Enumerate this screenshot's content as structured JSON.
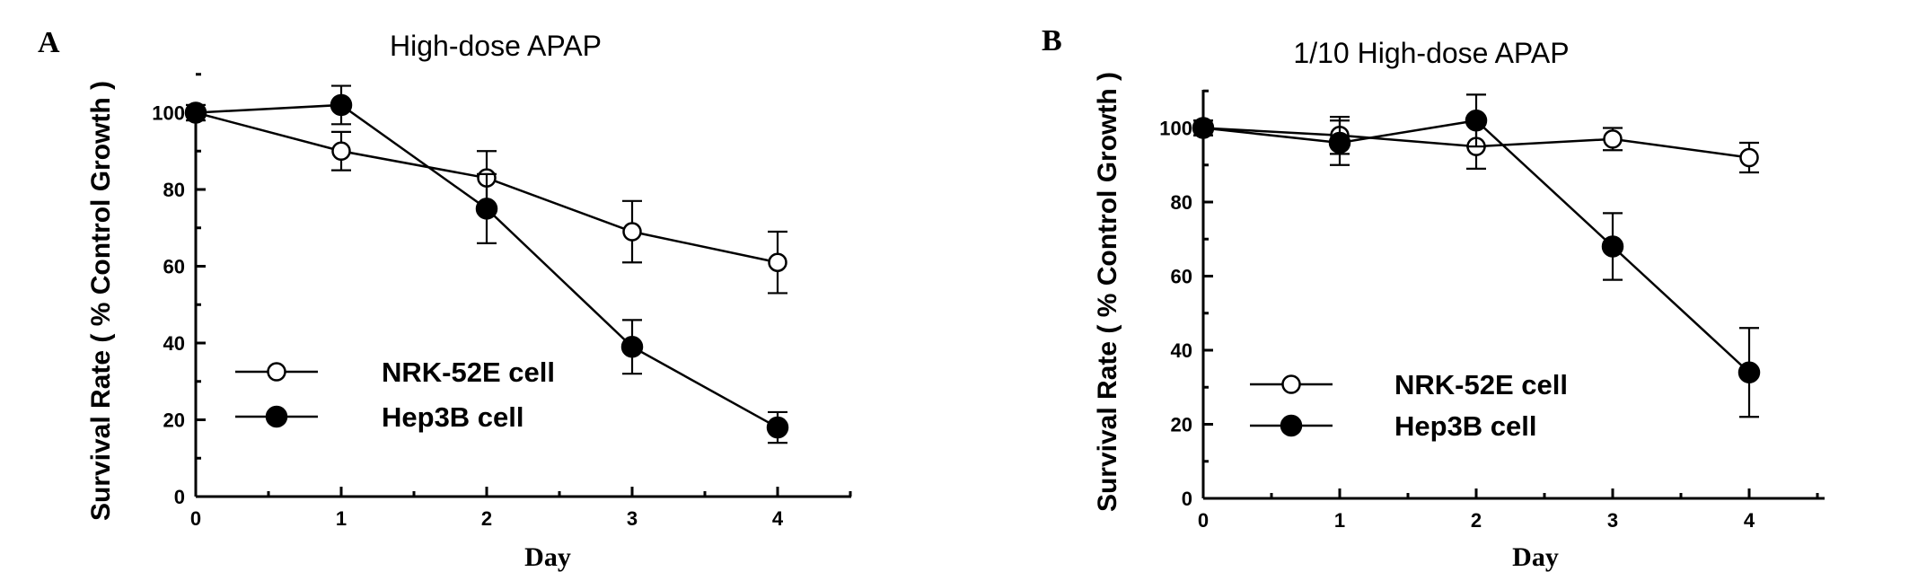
{
  "chart_data": [
    {
      "panel": "A",
      "type": "line",
      "title": "High-dose APAP",
      "xlabel": "Day",
      "ylabel": "Survival Rate ( % Control Growth )",
      "x": [
        0,
        1,
        2,
        3,
        4
      ],
      "xticks": [
        "0",
        "1",
        "2",
        "3",
        "4"
      ],
      "yticks": [
        "0",
        "20",
        "40",
        "60",
        "80",
        "100"
      ],
      "xlim": [
        0,
        4.5
      ],
      "ylim": [
        0,
        110
      ],
      "legend_position": "lower-left",
      "series": [
        {
          "name": "NRK-52E cell",
          "marker": "open-circle",
          "values": [
            100,
            90,
            83,
            69,
            61
          ],
          "errors": [
            2,
            5,
            7,
            8,
            8
          ]
        },
        {
          "name": "Hep3B cell",
          "marker": "filled-circle",
          "values": [
            100,
            102,
            75,
            39,
            18
          ],
          "errors": [
            2,
            5,
            9,
            7,
            4
          ]
        }
      ]
    },
    {
      "panel": "B",
      "type": "line",
      "title": "1/10 High-dose APAP",
      "xlabel": "Day",
      "ylabel": "Survival Rate ( % Control Growth )",
      "x": [
        0,
        1,
        2,
        3,
        4
      ],
      "xticks": [
        "0",
        "1",
        "2",
        "3",
        "4"
      ],
      "yticks": [
        "0",
        "20",
        "40",
        "60",
        "80",
        "100"
      ],
      "xlim": [
        0,
        4.5
      ],
      "ylim": [
        0,
        110
      ],
      "legend_position": "lower-left",
      "series": [
        {
          "name": "NRK-52E cell",
          "marker": "open-circle",
          "values": [
            100,
            98,
            95,
            97,
            92
          ],
          "errors": [
            2,
            5,
            6,
            3,
            4
          ]
        },
        {
          "name": "Hep3B cell",
          "marker": "filled-circle",
          "values": [
            100,
            96,
            102,
            68,
            34
          ],
          "errors": [
            2,
            6,
            7,
            9,
            12
          ]
        }
      ]
    }
  ]
}
